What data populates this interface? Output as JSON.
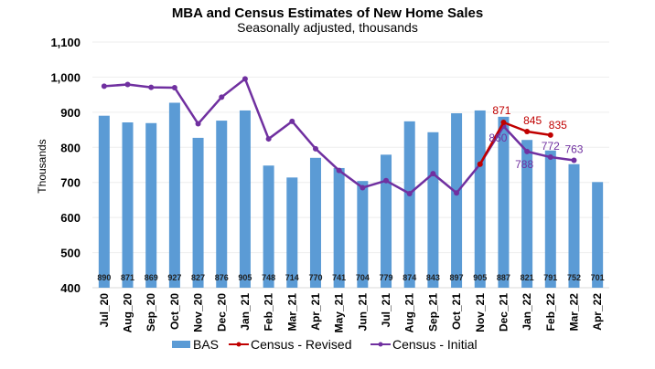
{
  "chart_data": {
    "type": "bar",
    "title": "MBA and Census Estimates of New Home Sales",
    "subtitle": "Seasonally adjusted, thousands",
    "xlabel": "",
    "ylabel": "Thousands",
    "ylim": [
      400,
      1100
    ],
    "yticks": [
      400,
      500,
      600,
      700,
      800,
      900,
      1000,
      1100
    ],
    "ytick_labels": [
      "400",
      "500",
      "600",
      "700",
      "800",
      "900",
      "1,000",
      "1,100"
    ],
    "grid": true,
    "legend_position": "bottom",
    "categories": [
      "Jul_20",
      "Aug_20",
      "Sep_20",
      "Oct_20",
      "Nov_20",
      "Dec_20",
      "Jan_21",
      "Feb_21",
      "Mar_21",
      "Apr_21",
      "May_21",
      "Jun_21",
      "Jul_21",
      "Aug_21",
      "Sep_21",
      "Oct_21",
      "Nov_21",
      "Dec_21",
      "Jan_22",
      "Feb_22",
      "Mar_22",
      "Apr_22"
    ],
    "series": [
      {
        "name": "BAS",
        "type": "bar",
        "color": "#5B9BD5",
        "values": [
          890,
          871,
          869,
          927,
          827,
          876,
          905,
          748,
          714,
          770,
          741,
          704,
          779,
          874,
          843,
          897,
          905,
          887,
          821,
          791,
          752,
          701
        ],
        "show_labels": true
      },
      {
        "name": "Census - Revised",
        "type": "line",
        "color": "#C00000",
        "values": [
          null,
          null,
          null,
          null,
          null,
          null,
          null,
          null,
          null,
          null,
          null,
          null,
          null,
          null,
          null,
          null,
          752,
          871,
          845,
          835,
          null,
          null
        ],
        "labels": [
          null,
          null,
          null,
          null,
          null,
          null,
          null,
          null,
          null,
          null,
          null,
          null,
          null,
          null,
          null,
          null,
          null,
          "871",
          "845",
          "835",
          null,
          null
        ]
      },
      {
        "name": "Census - Initial",
        "type": "line",
        "color": "#7030A0",
        "values": [
          974,
          979,
          971,
          970,
          867,
          943,
          995,
          824,
          874,
          796,
          734,
          685,
          705,
          668,
          725,
          670,
          752,
          860,
          788,
          772,
          763,
          null
        ],
        "labels": [
          null,
          null,
          null,
          null,
          null,
          null,
          null,
          null,
          null,
          null,
          null,
          null,
          null,
          null,
          null,
          null,
          null,
          "860",
          "788",
          "772",
          "763",
          null
        ]
      }
    ]
  }
}
